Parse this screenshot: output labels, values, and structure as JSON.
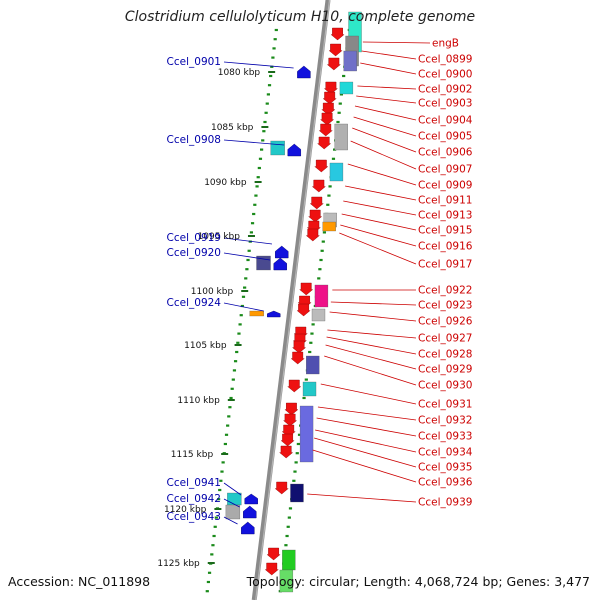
{
  "title": "Clostridium cellulolyticum H10, complete genome",
  "footer": {
    "accession": "Accession: NC_011898",
    "topology": "Topology: circular; Length: 4,068,724 bp; Genes: 3,477"
  },
  "colors": {
    "forward_strand": "#ee1111",
    "reverse_strand": "#1111dd",
    "backbone": "#888888",
    "ticks": "#1a8a1a",
    "left_labels": "#0000aa",
    "right_labels": "#cc0000"
  },
  "ruler_labels": [
    "1080 kbp",
    "1085 kbp",
    "1090 kbp",
    "1095 kbp",
    "1100 kbp",
    "1105 kbp",
    "1110 kbp",
    "1115 kbp",
    "1120 kbp",
    "1125 kbp"
  ],
  "left_genes": [
    "Ccel_0901",
    "Ccel_0908",
    "Ccel_0919",
    "Ccel_0920",
    "Ccel_0924",
    "Ccel_0941",
    "Ccel_0942",
    "Ccel_0943"
  ],
  "right_genes": [
    "engB",
    "Ccel_0899",
    "Ccel_0900",
    "Ccel_0902",
    "Ccel_0903",
    "Ccel_0904",
    "Ccel_0905",
    "Ccel_0906",
    "Ccel_0907",
    "Ccel_0909",
    "Ccel_0911",
    "Ccel_0913",
    "Ccel_0915",
    "Ccel_0916",
    "Ccel_0917",
    "Ccel_0922",
    "Ccel_0923",
    "Ccel_0926",
    "Ccel_0927",
    "Ccel_0928",
    "Ccel_0929",
    "Ccel_0930",
    "Ccel_0931",
    "Ccel_0932",
    "Ccel_0933",
    "Ccel_0934",
    "Ccel_0935",
    "Ccel_0936",
    "Ccel_0939"
  ]
}
